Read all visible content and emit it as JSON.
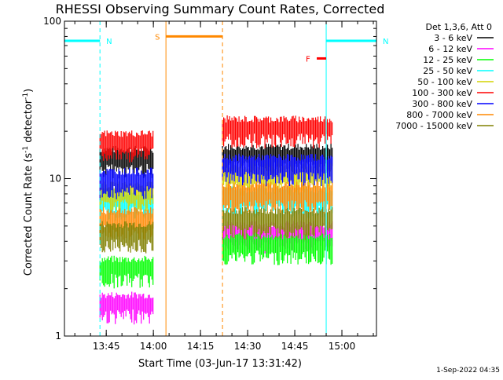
{
  "chart_data": {
    "type": "line",
    "title": "RHESSI Observing Summary Count Rates, Corrected",
    "xlabel": "Start Time (03-Jun-17 13:31:42)",
    "ylabel": "Corrected Count Rate (s",
    "ylabel_sup1": "-1",
    "ylabel_mid": " detector",
    "ylabel_sup2": "-1",
    "ylabel_end": ")",
    "y_scale": "log",
    "ylim": [
      1,
      100
    ],
    "y_ticks": [
      {
        "value": 1,
        "label": "1"
      },
      {
        "value": 10,
        "label": "10"
      },
      {
        "value": 100,
        "label": "100"
      }
    ],
    "xlim": [
      "13:31:42",
      "15:11:00"
    ],
    "x_ticks": [
      "13:45",
      "14:00",
      "14:15",
      "14:30",
      "14:45",
      "15:00"
    ],
    "legend_placement": "right",
    "legend_header": "Det 1,3,6, Att 0",
    "segments": [
      {
        "start": "13:43:00",
        "end": "14:00:00"
      },
      {
        "start": "14:22:00",
        "end": "14:57:00"
      }
    ],
    "series": [
      {
        "name": "3 - 6 keV",
        "color": "#000000",
        "values": [
          13.5,
          14.0
        ]
      },
      {
        "name": "6 - 12 keV",
        "color": "#ff00ff",
        "values": [
          1.6,
          4.5
        ]
      },
      {
        "name": "12 - 25 keV",
        "color": "#00ff00",
        "values": [
          2.7,
          3.8
        ]
      },
      {
        "name": "25 - 50 keV",
        "color": "#00ffff",
        "values": [
          7.2,
          7.5
        ]
      },
      {
        "name": "50 - 100 keV",
        "color": "#d4d400",
        "values": [
          8.0,
          10.5
        ]
      },
      {
        "name": "100 - 300 keV",
        "color": "#ff0000",
        "values": [
          17.0,
          21.0
        ]
      },
      {
        "name": "300 - 800 keV",
        "color": "#0000ff",
        "values": [
          9.8,
          12.0
        ]
      },
      {
        "name": "800 - 7000 keV",
        "color": "#ff8800",
        "values": [
          5.5,
          8.0
        ]
      },
      {
        "name": "7000 - 15000 keV",
        "color": "#808000",
        "values": [
          4.5,
          5.5
        ]
      }
    ],
    "flags": [
      {
        "label": "N",
        "color": "#00ffff",
        "start": "13:31:42",
        "end": "13:43:00",
        "level": 75
      },
      {
        "label": "N",
        "color": "#00ffff",
        "start": "14:55:00",
        "end": "15:11:00",
        "level": 75
      },
      {
        "label": "S",
        "color": "#ff8800",
        "start": "14:04:00",
        "end": "14:22:00",
        "level": 80
      },
      {
        "label": "F",
        "color": "#ff0000",
        "start": "14:52:00",
        "end": "14:55:00",
        "level": 58
      }
    ],
    "footer_date": "1-Sep-2022 04:35"
  }
}
